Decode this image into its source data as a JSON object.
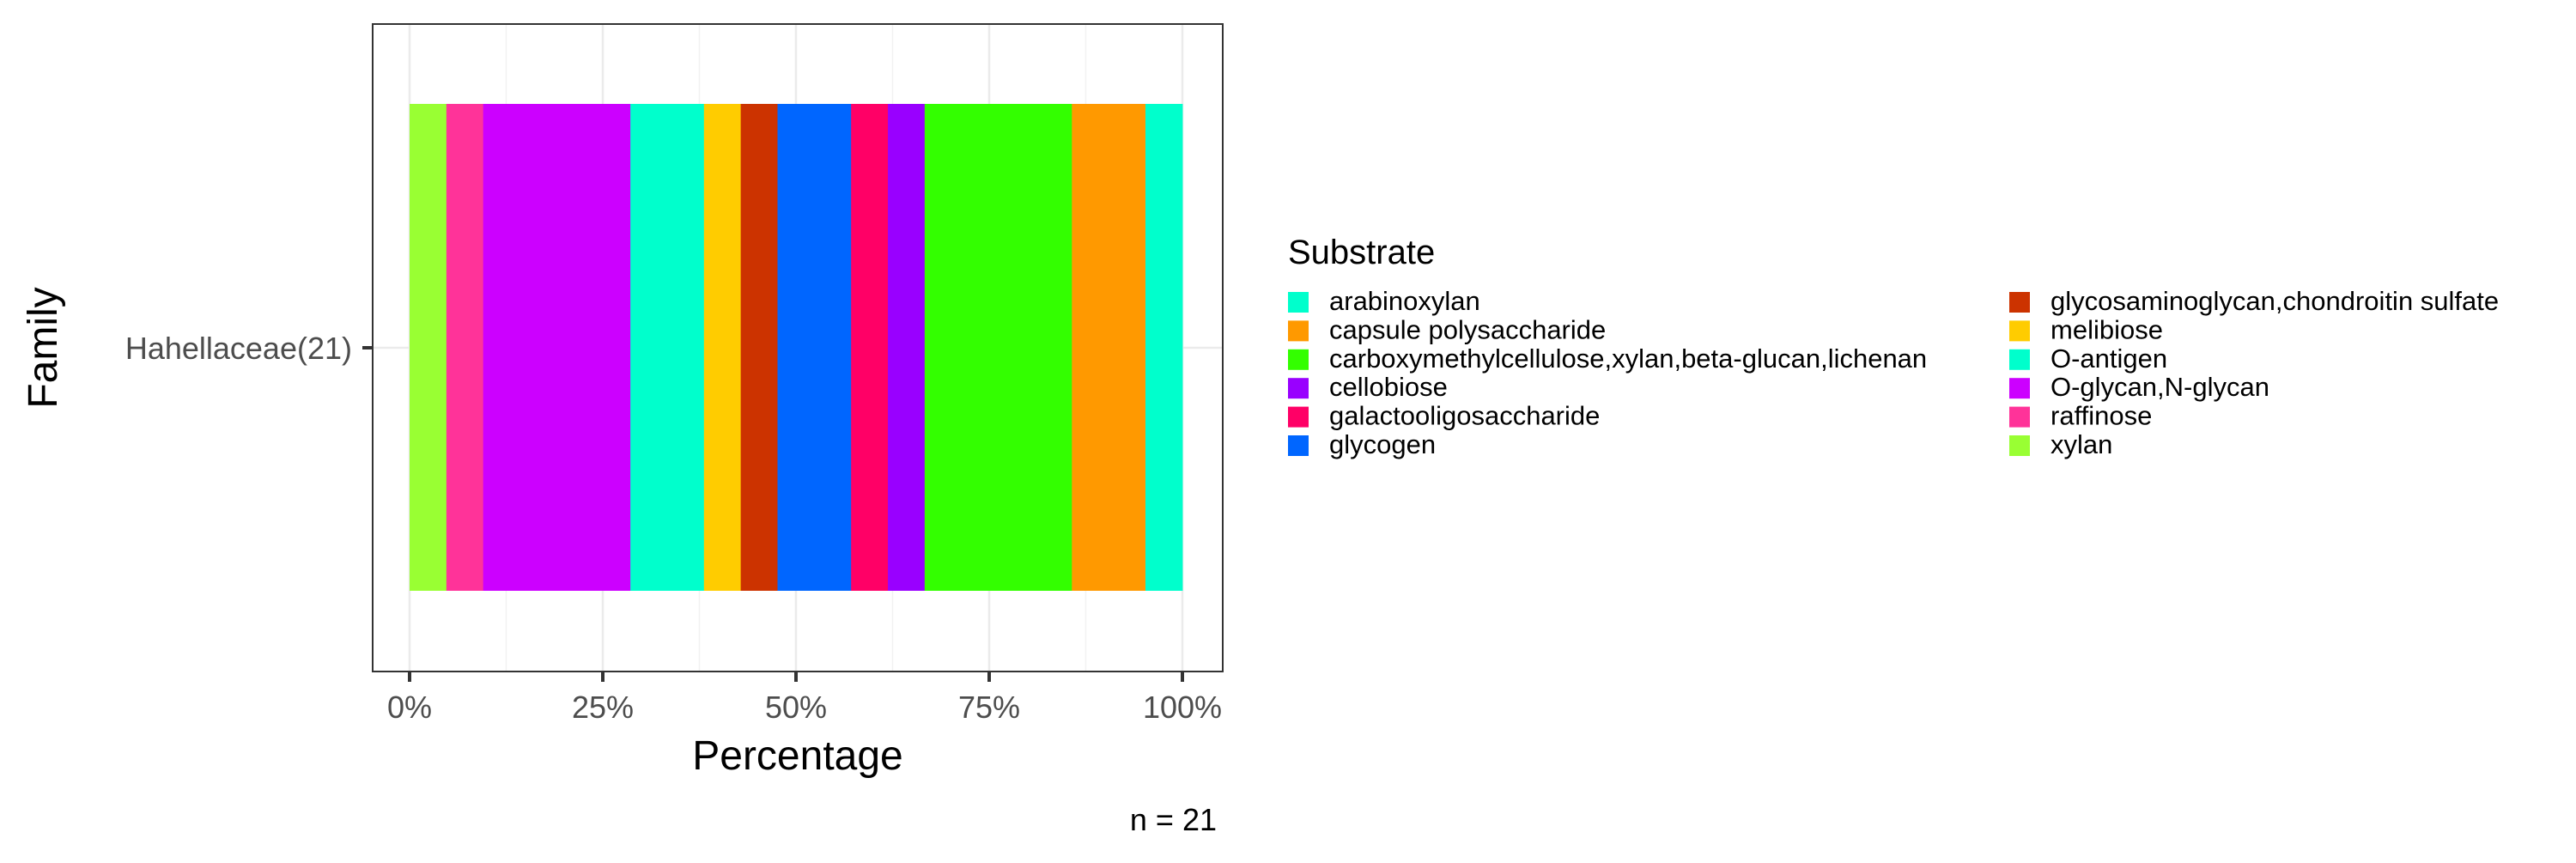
{
  "chart_data": {
    "type": "bar",
    "orientation": "horizontal",
    "stacked": "percent",
    "categories": [
      "Hahellaceae(21)"
    ],
    "series": [
      {
        "name": "xylan",
        "values": [
          4.76
        ],
        "color": "#99FF33"
      },
      {
        "name": "raffinose",
        "values": [
          4.76
        ],
        "color": "#FF3399"
      },
      {
        "name": "O-glycan,N-glycan",
        "values": [
          19.05
        ],
        "color": "#CC00FF"
      },
      {
        "name": "O-antigen",
        "values": [
          9.52
        ],
        "color": "#00FFCC"
      },
      {
        "name": "melibiose",
        "values": [
          4.76
        ],
        "color": "#FFCC00"
      },
      {
        "name": "glycosaminoglycan,chondroitin sulfate",
        "values": [
          4.76
        ],
        "color": "#CC3300"
      },
      {
        "name": "glycogen",
        "values": [
          9.52
        ],
        "color": "#0066FF"
      },
      {
        "name": "galactooligosaccharide",
        "values": [
          4.76
        ],
        "color": "#FF0066"
      },
      {
        "name": "cellobiose",
        "values": [
          4.76
        ],
        "color": "#9900FF"
      },
      {
        "name": "carboxymethylcellulose,xylan,beta-glucan,lichenan",
        "values": [
          19.05
        ],
        "color": "#33FF00"
      },
      {
        "name": "capsule polysaccharide",
        "values": [
          9.52
        ],
        "color": "#FF9900"
      },
      {
        "name": "arabinoxylan",
        "values": [
          4.76
        ],
        "color": "#00FFCC"
      }
    ],
    "xlabel": "Percentage",
    "ylabel": "Family",
    "xlim": [
      0,
      100
    ],
    "xticks": [
      "0%",
      "25%",
      "50%",
      "75%",
      "100%"
    ],
    "grid": true,
    "legend": {
      "title": "Substrate",
      "position": "right",
      "columns": [
        [
          "arabinoxylan",
          "capsule polysaccharide",
          "carboxymethylcellulose,xylan,beta-glucan,lichenan",
          "cellobiose",
          "galactooligosaccharide",
          "glycogen"
        ],
        [
          "glycosaminoglycan,chondroitin sulfate",
          "melibiose",
          "O-antigen",
          "O-glycan,N-glycan",
          "raffinose",
          "xylan"
        ]
      ]
    },
    "caption": "n = 21"
  }
}
